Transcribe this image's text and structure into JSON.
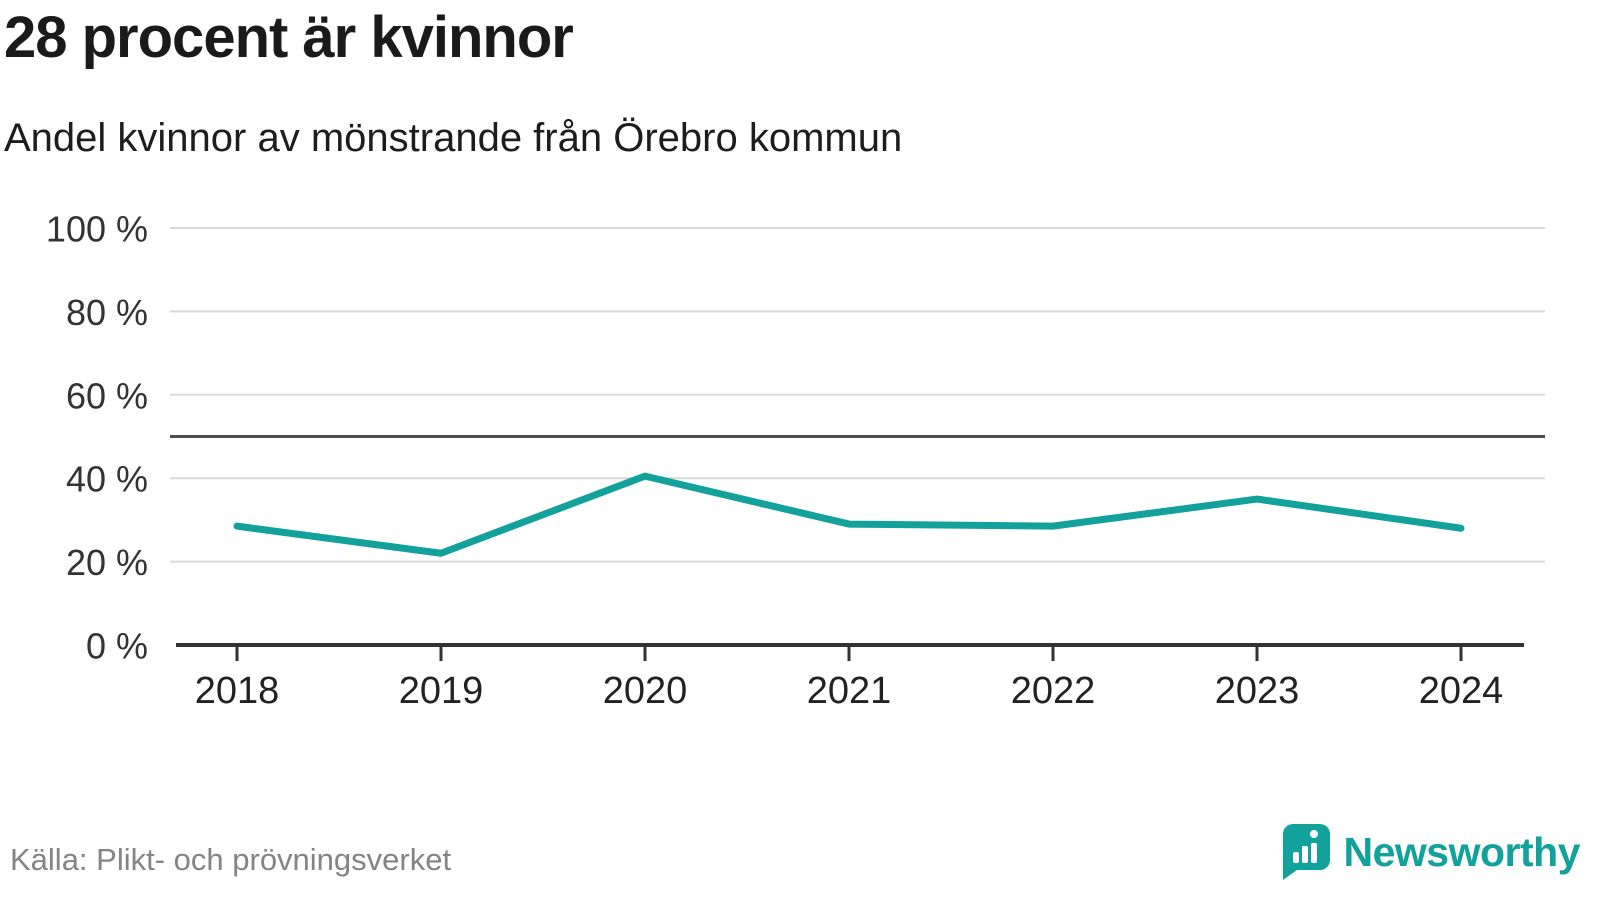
{
  "title": "28 procent är kvinnor",
  "subtitle": "Andel kvinnor av mönstrande från Örebro kommun",
  "source": "Källa: Plikt- och prövningsverket",
  "logo": {
    "text": "Newsworthy"
  },
  "colors": {
    "accent": "#12a19b",
    "reference_line": "#4d4d4d",
    "gridline": "#d9d9d9",
    "axis": "#333333",
    "tick_text": "#333333",
    "xlabel_text": "#222222",
    "muted_text": "#848484"
  },
  "chart_data": {
    "type": "line",
    "title": "28 procent är kvinnor",
    "subtitle": "Andel kvinnor av mönstrande från Örebro kommun",
    "categories": [
      "2018",
      "2019",
      "2020",
      "2021",
      "2022",
      "2023",
      "2024"
    ],
    "series": [
      {
        "name": "Andel kvinnor av mönstrande",
        "values": [
          28.5,
          22,
          40.5,
          29,
          28.5,
          35,
          28
        ]
      }
    ],
    "ylim": [
      0,
      100
    ],
    "yticks": [
      {
        "value": 0,
        "label": "0 %"
      },
      {
        "value": 20,
        "label": "20 %"
      },
      {
        "value": 40,
        "label": "40 %"
      },
      {
        "value": 60,
        "label": "60 %"
      },
      {
        "value": 80,
        "label": "80 %"
      },
      {
        "value": 100,
        "label": "100 %"
      }
    ],
    "reference_line": 50,
    "grid": true,
    "legend": "none",
    "xlabel": "",
    "ylabel": "",
    "source": "Källa: Plikt- och prövningsverket"
  }
}
